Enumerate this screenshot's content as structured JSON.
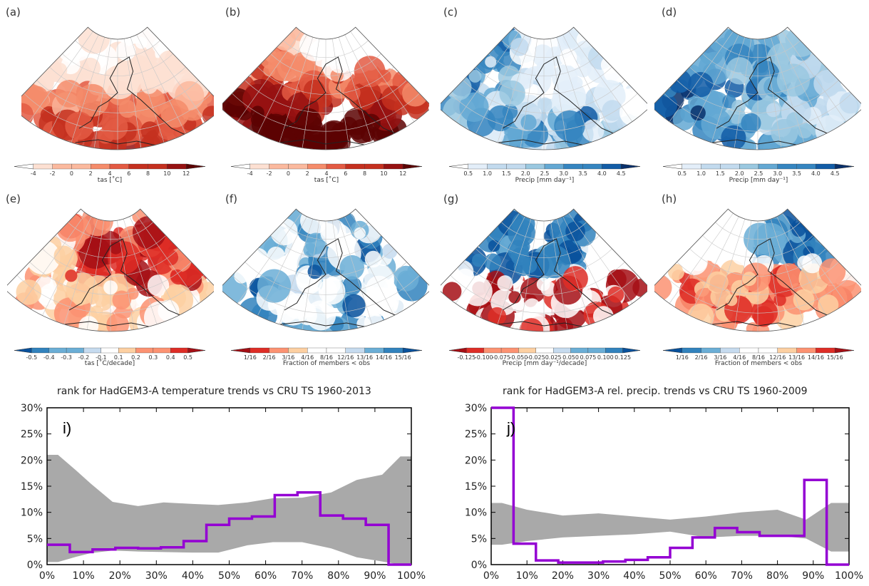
{
  "panel_labels": [
    "(a)",
    "(b)",
    "(c)",
    "(d)",
    "(e)",
    "(f)",
    "(g)",
    "(h)"
  ],
  "colorbars": [
    {
      "title": "tas [˚C]",
      "ticks": [
        "-4",
        "-2",
        "0",
        "2",
        "4",
        "6",
        "8",
        "10",
        "12"
      ],
      "palette": "temp"
    },
    {
      "title": "tas [˚C]",
      "ticks": [
        "-4",
        "-2",
        "0",
        "2",
        "4",
        "6",
        "8",
        "10",
        "12"
      ],
      "palette": "temp"
    },
    {
      "title": "Precip [mm day⁻¹]",
      "ticks": [
        "0.5",
        "1.0",
        "1.5",
        "2.0",
        "2.5",
        "3.0",
        "3.5",
        "4.0",
        "4.5"
      ],
      "palette": "precip"
    },
    {
      "title": "Precip [mm day⁻¹]",
      "ticks": [
        "0.5",
        "1.0",
        "1.5",
        "2.0",
        "2.5",
        "3.0",
        "3.5",
        "4.0",
        "4.5"
      ],
      "palette": "precip"
    },
    {
      "title": "tas [˚C/decade]",
      "ticks": [
        "-0.5",
        "-0.4",
        "-0.3",
        "-0.2",
        "-0.1",
        "0.1",
        "0.2",
        "0.3",
        "0.4",
        "0.5"
      ],
      "palette": "div_br"
    },
    {
      "title": "Fraction of members < obs",
      "ticks": [
        "1/16",
        "2/16",
        "3/16",
        "4/16",
        "8/16",
        "12/16",
        "13/16",
        "14/16",
        "15/16"
      ],
      "palette": "div_rb"
    },
    {
      "title": "Precip [mm day⁻¹/decade]",
      "ticks": [
        "-0.125",
        "-0.100",
        "-0.075",
        "-0.050",
        "-0.025",
        "0.025",
        "0.050",
        "0.075",
        "0.100",
        "0.125"
      ],
      "palette": "div_rb"
    },
    {
      "title": "Fraction of members < obs",
      "ticks": [
        "1/16",
        "2/16",
        "3/16",
        "4/16",
        "8/16",
        "12/16",
        "13/16",
        "14/16",
        "15/16"
      ],
      "palette": "div_br"
    }
  ],
  "colors": {
    "purple": "#9400d3",
    "band": "#a9a9a9",
    "temp": [
      "#ffffff",
      "#fde0d2",
      "#fbb99e",
      "#f58c6b",
      "#e35a43",
      "#c4301f",
      "#961212",
      "#5c0202"
    ],
    "precip": [
      "#ffffff",
      "#e3eef9",
      "#c2daee",
      "#9ac8e0",
      "#63a8d3",
      "#3585c0",
      "#125ca6",
      "#08306b"
    ],
    "div_br": [
      "#08519c",
      "#3182bd",
      "#6baed6",
      "#c6dbef",
      "#ffffff",
      "#fdd0a2",
      "#fc9272",
      "#de2d26",
      "#a50f15"
    ],
    "div_rb": [
      "#a50f15",
      "#de2d26",
      "#fc9272",
      "#fdd0a2",
      "#ffffff",
      "#c6dbef",
      "#6baed6",
      "#3182bd",
      "#08519c"
    ]
  },
  "chart_data": [
    {
      "type": "area",
      "title": "rank for HadGEM3-A temperature trends vs CRU TS  1960-2013",
      "panel_label": "i)",
      "xlabel": "",
      "ylabel": "",
      "x_ticks": [
        "0%",
        "10%",
        "20%",
        "30%",
        "40%",
        "50%",
        "60%",
        "70%",
        "80%",
        "90%",
        "100%"
      ],
      "y_ticks": [
        "0%",
        "5%",
        "10%",
        "15%",
        "20%",
        "25%",
        "30%"
      ],
      "xlim": [
        0,
        100
      ],
      "ylim": [
        0,
        30
      ],
      "bins_edges": [
        0,
        6.25,
        12.5,
        18.75,
        25,
        31.25,
        37.5,
        43.75,
        50,
        56.25,
        62.5,
        68.75,
        75,
        81.25,
        87.5,
        93.75,
        100
      ],
      "series": [
        {
          "kind": "step",
          "values": [
            3.8,
            2.4,
            2.9,
            3.2,
            3.1,
            3.3,
            4.5,
            7.6,
            8.8,
            9.2,
            13.3,
            13.8,
            9.4,
            8.8,
            7.6,
            0
          ]
        },
        {
          "kind": "band",
          "x": [
            0,
            3,
            8,
            12,
            18,
            25,
            32,
            40,
            47,
            55,
            62,
            70,
            78,
            85,
            92,
            97,
            100
          ],
          "upper": [
            21,
            21,
            18,
            15.5,
            12,
            11.2,
            11.9,
            11.6,
            11.4,
            11.9,
            12.7,
            12.8,
            13.8,
            16.2,
            17.2,
            20.7,
            20.7
          ],
          "lower": [
            0.5,
            0.5,
            1.5,
            2.2,
            2.7,
            2.5,
            2.4,
            2.3,
            2.3,
            3.7,
            4.3,
            4.3,
            3.1,
            1.4,
            0.6,
            0,
            0
          ]
        }
      ]
    },
    {
      "type": "area",
      "title": "rank for HadGEM3-A rel. precip. trends vs CRU TS  1960-2009",
      "panel_label": "j)",
      "xlabel": "",
      "ylabel": "",
      "x_ticks": [
        "0%",
        "10%",
        "20%",
        "30%",
        "40%",
        "50%",
        "60%",
        "70%",
        "80%",
        "90%",
        "100%"
      ],
      "y_ticks": [
        "0%",
        "5%",
        "10%",
        "15%",
        "20%",
        "25%",
        "30%"
      ],
      "xlim": [
        0,
        100
      ],
      "ylim": [
        0,
        30
      ],
      "bins_edges": [
        0,
        6.25,
        12.5,
        18.75,
        25,
        31.25,
        37.5,
        43.75,
        50,
        56.25,
        62.5,
        68.75,
        75,
        81.25,
        87.5,
        93.75,
        100
      ],
      "series": [
        {
          "kind": "step",
          "values": [
            30,
            4,
            0.8,
            0.4,
            0.4,
            0.6,
            0.9,
            1.4,
            3.2,
            5.2,
            7,
            6.2,
            5.5,
            5.5,
            16.2,
            0
          ]
        },
        {
          "kind": "band",
          "x": [
            0,
            3,
            10,
            20,
            30,
            40,
            50,
            60,
            70,
            80,
            88,
            95,
            100
          ],
          "upper": [
            11.8,
            11.8,
            10.5,
            9.4,
            9.8,
            9.2,
            8.6,
            9.2,
            10,
            10.5,
            8.6,
            11.8,
            11.8
          ],
          "lower": [
            3.8,
            3.8,
            4.5,
            5.2,
            5.5,
            5.8,
            6.3,
            5.2,
            5.5,
            5.5,
            5,
            2.5,
            2.5
          ]
        }
      ]
    }
  ]
}
